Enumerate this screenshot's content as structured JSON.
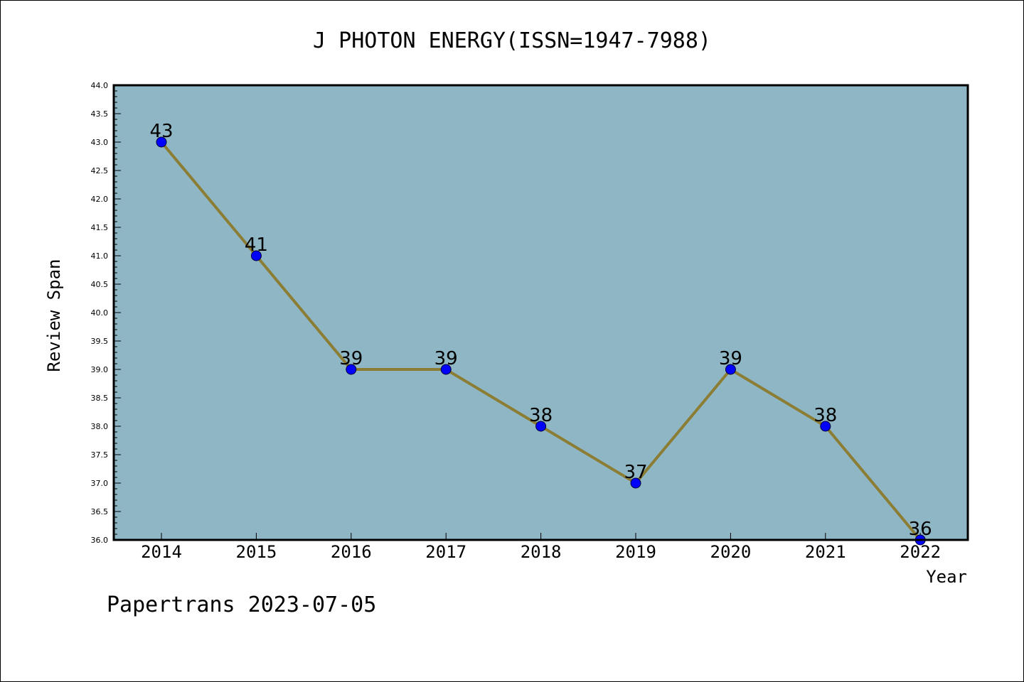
{
  "chart_data": {
    "type": "line",
    "title": "J PHOTON ENERGY(ISSN=1947-7988)",
    "xlabel": "Year",
    "ylabel": "Review Span",
    "ylim": [
      36.0,
      44.0
    ],
    "ytick_step": 0.5,
    "grid": false,
    "categories": [
      "2014",
      "2015",
      "2016",
      "2017",
      "2018",
      "2019",
      "2020",
      "2021",
      "2022"
    ],
    "series": [
      {
        "values": [
          43,
          41,
          39,
          39,
          38,
          37,
          39,
          38,
          36
        ],
        "line_color": "#8c7d34",
        "marker_color": "#0000ff"
      }
    ],
    "plot_background": "#8fb6c4",
    "footer": "Papertrans 2023-07-05"
  }
}
